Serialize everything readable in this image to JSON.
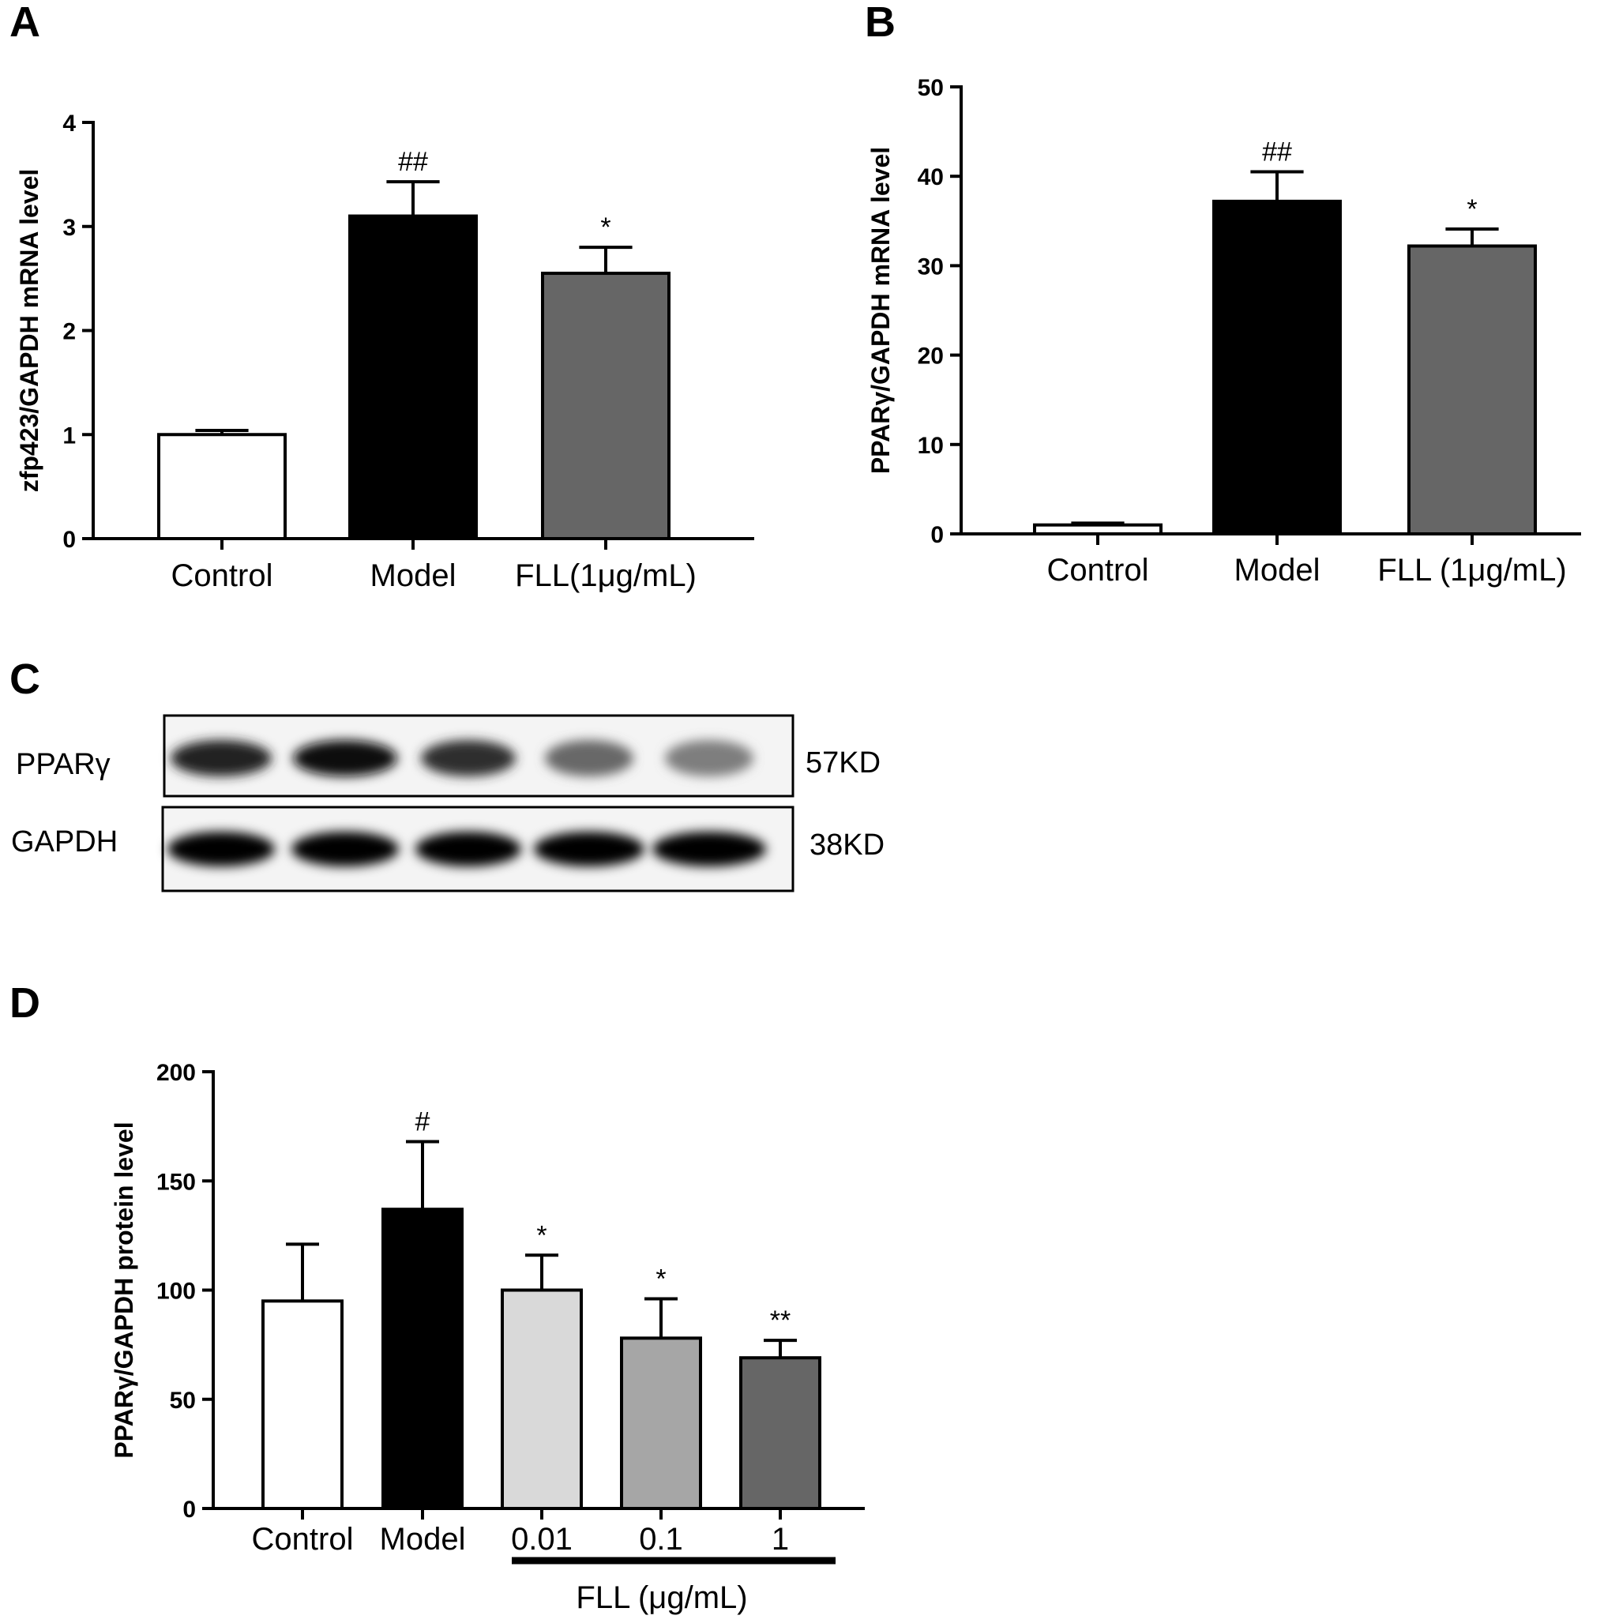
{
  "panels": {
    "A": "A",
    "B": "B",
    "C": "C",
    "D": "D"
  },
  "chart_data": [
    {
      "panel": "A",
      "type": "bar",
      "ylabel": "zfp423/GAPDH mRNA level",
      "ylim": [
        0,
        4
      ],
      "yticks": [
        0,
        1,
        2,
        3,
        4
      ],
      "categories": [
        "Control",
        "Model",
        "FLL(1μg/mL)"
      ],
      "values": [
        1.0,
        3.1,
        2.55
      ],
      "errors": [
        0.04,
        0.33,
        0.25
      ],
      "significance": [
        "",
        "##",
        "*"
      ],
      "colors": [
        "#ffffff",
        "#000000",
        "#666666"
      ]
    },
    {
      "panel": "B",
      "type": "bar",
      "ylabel": "PPARγ/GAPDH mRNA level",
      "ylim": [
        0,
        50
      ],
      "yticks": [
        0,
        10,
        20,
        30,
        40,
        50
      ],
      "categories": [
        "Control",
        "Model",
        "FLL (1μg/mL)"
      ],
      "values": [
        1.0,
        37.2,
        32.2
      ],
      "errors": [
        0.2,
        3.3,
        1.9
      ],
      "significance": [
        "",
        "##",
        "*"
      ],
      "colors": [
        "#ffffff",
        "#000000",
        "#666666"
      ]
    },
    {
      "panel": "D",
      "type": "bar",
      "ylabel": "PPARγ/GAPDH protein level",
      "ylim": [
        0,
        200
      ],
      "yticks": [
        0,
        50,
        100,
        150,
        200
      ],
      "categories": [
        "Control",
        "Model",
        "0.01",
        "0.1",
        "1"
      ],
      "values": [
        95,
        137,
        100,
        78,
        69
      ],
      "errors": [
        26,
        31,
        16,
        18,
        8
      ],
      "significance": [
        "",
        "#",
        "*",
        "*",
        "**"
      ],
      "colors": [
        "#ffffff",
        "#000000",
        "#d9d9d9",
        "#a6a6a6",
        "#666666"
      ],
      "group_label": "FLL (μg/mL)"
    }
  ],
  "blot": {
    "rows": [
      {
        "label": "PPARγ",
        "size": "57KD"
      },
      {
        "label": "GAPDH",
        "size": "38KD"
      }
    ],
    "lanes": 5,
    "band_intensity": [
      [
        0.85,
        0.95,
        0.8,
        0.55,
        0.45
      ],
      [
        1.0,
        1.0,
        1.0,
        1.0,
        1.0
      ]
    ]
  }
}
